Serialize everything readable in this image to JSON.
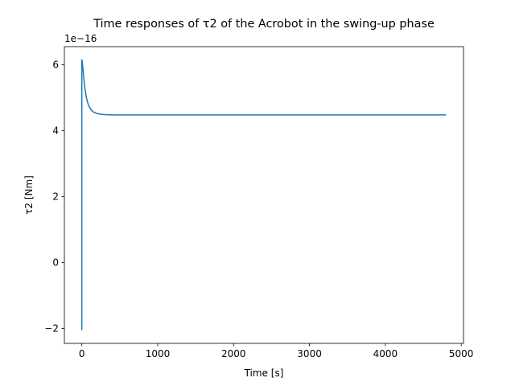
{
  "chart_data": {
    "type": "line",
    "title": "Time responses of τ2 of the Acrobot in the swing-up phase",
    "xlabel": "Time [s]",
    "ylabel": "τ2 [Nm]",
    "y_offset_label": "1e−16",
    "xlim": [
      -230,
      5030
    ],
    "ylim": [
      -2.45,
      6.55
    ],
    "x_ticks": [
      0,
      1000,
      2000,
      3000,
      4000,
      5000
    ],
    "x_tick_labels": [
      "0",
      "1000",
      "2000",
      "3000",
      "4000",
      "5000"
    ],
    "y_ticks": [
      -2,
      0,
      2,
      4,
      6
    ],
    "y_tick_labels": [
      "−2",
      "0",
      "2",
      "4",
      "6"
    ],
    "grid": false,
    "legend": "none",
    "series_color": "#1f77b4",
    "series": [
      {
        "x": [
          0,
          0,
          2,
          5,
          10,
          20,
          30,
          40,
          50,
          60,
          80,
          100,
          120,
          150,
          200,
          250,
          300,
          400,
          600,
          1000,
          2000,
          3000,
          4000,
          4800
        ],
        "y": [
          -2.05,
          6.15,
          6.15,
          6.1,
          6.0,
          5.75,
          5.5,
          5.3,
          5.15,
          5.0,
          4.83,
          4.72,
          4.64,
          4.57,
          4.52,
          4.5,
          4.49,
          4.48,
          4.48,
          4.48,
          4.48,
          4.48,
          4.48,
          4.48
        ]
      }
    ]
  }
}
